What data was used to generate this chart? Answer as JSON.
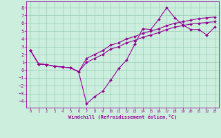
{
  "xlabel": "Windchill (Refroidissement éolien,°C)",
  "bg_color": "#cceedd",
  "grid_color": "#99ccbb",
  "line_color": "#990099",
  "xlim": [
    -0.5,
    23.5
  ],
  "ylim": [
    -4.8,
    8.8
  ],
  "xticks": [
    0,
    1,
    2,
    3,
    4,
    5,
    6,
    7,
    8,
    9,
    10,
    11,
    12,
    13,
    14,
    15,
    16,
    17,
    18,
    19,
    20,
    21,
    22,
    23
  ],
  "yticks": [
    -4,
    -3,
    -2,
    -1,
    0,
    1,
    2,
    3,
    4,
    5,
    6,
    7,
    8
  ],
  "line1_x": [
    0,
    1,
    2,
    3,
    4,
    5,
    6,
    7,
    8,
    9,
    10,
    11,
    12,
    13,
    14,
    15,
    16,
    17,
    18,
    19,
    20,
    21,
    22,
    23
  ],
  "line1_y": [
    2.5,
    0.8,
    0.7,
    0.5,
    0.4,
    0.3,
    -0.2,
    -4.3,
    -3.4,
    -2.7,
    -1.3,
    0.2,
    1.3,
    3.3,
    5.3,
    5.2,
    6.5,
    8.0,
    6.7,
    5.8,
    5.2,
    5.2,
    4.5,
    5.5
  ],
  "line2_x": [
    0,
    1,
    2,
    3,
    4,
    5,
    6,
    7,
    8,
    9,
    10,
    11,
    12,
    13,
    14,
    15,
    16,
    17,
    18,
    19,
    20,
    21,
    22,
    23
  ],
  "line2_y": [
    2.5,
    0.8,
    0.7,
    0.5,
    0.4,
    0.3,
    -0.2,
    1.5,
    2.0,
    2.5,
    3.2,
    3.5,
    4.0,
    4.3,
    4.7,
    5.0,
    5.3,
    5.7,
    6.0,
    6.2,
    6.4,
    6.6,
    6.7,
    6.8
  ],
  "line3_x": [
    0,
    1,
    2,
    3,
    4,
    5,
    6,
    7,
    8,
    9,
    10,
    11,
    12,
    13,
    14,
    15,
    16,
    17,
    18,
    19,
    20,
    21,
    22,
    23
  ],
  "line3_y": [
    2.5,
    0.8,
    0.7,
    0.5,
    0.4,
    0.3,
    -0.2,
    1.0,
    1.5,
    2.0,
    2.7,
    3.0,
    3.5,
    3.8,
    4.2,
    4.5,
    4.8,
    5.2,
    5.5,
    5.7,
    5.9,
    6.0,
    6.1,
    6.2
  ],
  "xlabel_fontsize": 5.0,
  "tick_fontsize_x": 4.0,
  "tick_fontsize_y": 5.0,
  "linewidth": 0.8,
  "markersize": 2.0
}
